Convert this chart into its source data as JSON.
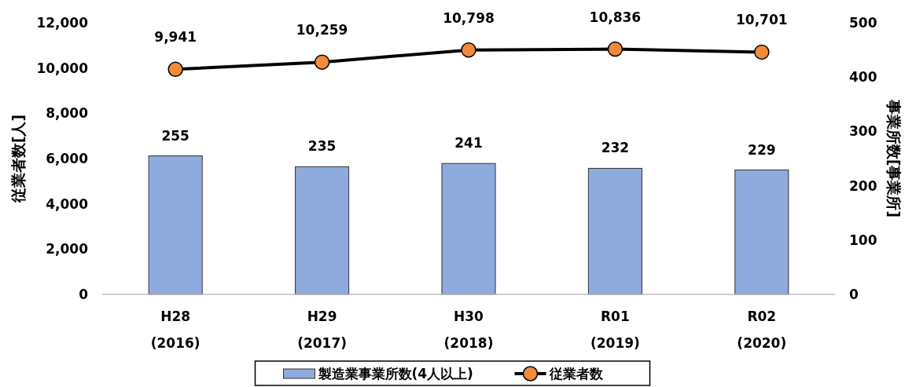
{
  "chart_data": {
    "type": "bar",
    "categories": [
      "H28\n(2016)",
      "H29\n(2017)",
      "H30\n(2018)",
      "R01\n(2019)",
      "R02\n(2020)"
    ],
    "series": [
      {
        "name": "製造業事業所数(4人以上)",
        "axis": "y2",
        "color": "#8faadc",
        "values": [
          255,
          235,
          241,
          232,
          229
        ]
      },
      {
        "name": "従業者数",
        "type": "line",
        "axis": "y",
        "color": "#000000",
        "colors": [
          "#f08a3c",
          "#f08a3c",
          "#f08a3c",
          "#f08a3c",
          "#f08a3c"
        ],
        "values": [
          9941,
          10259,
          10798,
          10836,
          10701
        ],
        "value_labels": [
          "9,941",
          "10,259",
          "10,798",
          "10,836",
          "10,701"
        ]
      }
    ],
    "ylabel": "従業者数[人]",
    "y2label": "事業所数[事業所]",
    "ylim": [
      0,
      12000
    ],
    "yticks": [
      {
        "value": 0,
        "label": "0"
      },
      {
        "value": 2000,
        "label": "2,000"
      },
      {
        "value": 4000,
        "label": "4,000"
      },
      {
        "value": 6000,
        "label": "6,000"
      },
      {
        "value": 8000,
        "label": "8,000"
      },
      {
        "value": 10000,
        "label": "10,000"
      },
      {
        "value": 12000,
        "label": "12,000"
      }
    ],
    "y2lim": [
      0,
      500
    ],
    "y2ticks": [
      0,
      100,
      200,
      300,
      400,
      500
    ],
    "data_labels": true,
    "legend": "bottom",
    "grid": false,
    "marker": "circle",
    "line_style": "solid"
  }
}
